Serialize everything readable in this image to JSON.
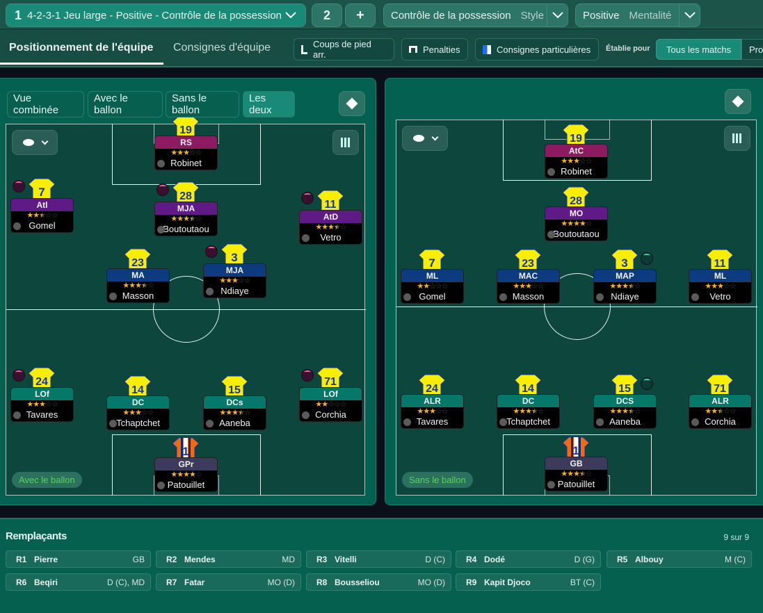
{
  "topbar": {
    "tactic": {
      "slot": "1",
      "label": "4-2-3-1 Jeu large - Positive - Contrôle de la possession"
    },
    "slot2": "2",
    "add": "+",
    "style": {
      "value": "Contrôle de la possession",
      "label": "Style"
    },
    "mentality": {
      "value": "Positive",
      "label": "Mentalité"
    }
  },
  "tabs": {
    "positioning": "Positionnement de l'équipe",
    "instructions": "Consignes d'équipe"
  },
  "toolbar": {
    "set_pieces": "Coups de pied arr.",
    "penalties": "Penalties",
    "player_instructions": "Consignes particulières",
    "established_for": "Établie pour",
    "all_matches": "Tous les matchs",
    "pro": "Pro"
  },
  "views": [
    "Vue combinée",
    "Avec le ballon",
    "Sans le ballon",
    "Les deux"
  ],
  "pitches": [
    {
      "phase": "Avec le ballon",
      "players": [
        {
          "num": "19",
          "role": "RS",
          "rating": 3,
          "name": "Robinet",
          "color": "#8c1b62",
          "icon": null
        },
        {
          "num": "7",
          "role": "Atl",
          "rating": 2.5,
          "name": "Gomel",
          "color": "#5f1a86",
          "icon": "pink"
        },
        {
          "num": "28",
          "role": "MJA",
          "rating": 3.5,
          "name": "Boutoutaou",
          "color": "#5f1a86",
          "icon": "pink"
        },
        {
          "num": "11",
          "role": "AtD",
          "rating": 3.5,
          "name": "Vetro",
          "color": "#5f1a86",
          "icon": "pink"
        },
        {
          "num": "23",
          "role": "MA",
          "rating": 3.5,
          "name": "Masson",
          "color": "#0d3b80",
          "icon": null
        },
        {
          "num": "3",
          "role": "MJA",
          "rating": 3,
          "name": "Ndiaye",
          "color": "#0d3b80",
          "icon": "pink"
        },
        {
          "num": "24",
          "role": "LOf",
          "rating": 3,
          "name": "Tavares",
          "color": "#06786a",
          "icon": "pink"
        },
        {
          "num": "14",
          "role": "DC",
          "rating": 3,
          "name": "Tchaptchet",
          "color": "#06786a",
          "icon": null
        },
        {
          "num": "15",
          "role": "DCs",
          "rating": 3.5,
          "name": "Aaneba",
          "color": "#06786a",
          "icon": null
        },
        {
          "num": "71",
          "role": "LOf",
          "rating": 2,
          "name": "Corchia",
          "color": "#06786a",
          "icon": "pink"
        },
        {
          "num": "1",
          "role": "GPr",
          "rating": 4,
          "name": "Patouillet",
          "color": "#3d3b5c",
          "icon": null,
          "gk": true
        }
      ]
    },
    {
      "phase": "Sans le ballon",
      "players": [
        {
          "num": "19",
          "role": "AtC",
          "rating": 3,
          "name": "Robinet",
          "color": "#8c1b62",
          "icon": null
        },
        {
          "num": "28",
          "role": "MO",
          "rating": 4,
          "name": "Boutoutaou",
          "color": "#5f1a86",
          "icon": null
        },
        {
          "num": "7",
          "role": "ML",
          "rating": 2,
          "name": "Gomel",
          "color": "#0d3b80",
          "icon": null
        },
        {
          "num": "23",
          "role": "MAC",
          "rating": 3,
          "name": "Masson",
          "color": "#0d3b80",
          "icon": null
        },
        {
          "num": "3",
          "role": "MAP",
          "rating": 3.5,
          "name": "Ndiaye",
          "color": "#0d3b80",
          "icon": "teal"
        },
        {
          "num": "11",
          "role": "ML",
          "rating": 3,
          "name": "Vetro",
          "color": "#0d3b80",
          "icon": null
        },
        {
          "num": "24",
          "role": "ALR",
          "rating": 3,
          "name": "Tavares",
          "color": "#06786a",
          "icon": null
        },
        {
          "num": "14",
          "role": "DC",
          "rating": 3.5,
          "name": "Tchaptchet",
          "color": "#06786a",
          "icon": null
        },
        {
          "num": "15",
          "role": "DCS",
          "rating": 3.5,
          "name": "Aaneba",
          "color": "#06786a",
          "icon": "teal"
        },
        {
          "num": "71",
          "role": "ALR",
          "rating": 2.5,
          "name": "Corchia",
          "color": "#06786a",
          "icon": null
        },
        {
          "num": "1",
          "role": "GB",
          "rating": 3.5,
          "name": "Patouillet",
          "color": "#3d3b5c",
          "icon": null,
          "gk": true
        }
      ]
    }
  ],
  "bench": {
    "title": "Remplaçants",
    "count": "9 sur 9",
    "players": [
      {
        "slot": "R1",
        "name": "Pierre",
        "pos": "GB"
      },
      {
        "slot": "R2",
        "name": "Mendes",
        "pos": "MD"
      },
      {
        "slot": "R3",
        "name": "Vitelli",
        "pos": "D (C)"
      },
      {
        "slot": "R4",
        "name": "Dodé",
        "pos": "D (G)"
      },
      {
        "slot": "R5",
        "name": "Albouy",
        "pos": "M (C)"
      },
      {
        "slot": "R6",
        "name": "Beqiri",
        "pos": "D (C), MD"
      },
      {
        "slot": "R7",
        "name": "Fatar",
        "pos": "MO (D)"
      },
      {
        "slot": "R8",
        "name": "Bousseliou",
        "pos": "MO (D)"
      },
      {
        "slot": "R9",
        "name": "Kapit Djoco",
        "pos": "BT (C)"
      }
    ]
  },
  "colors": {
    "accent": "#1a8a78",
    "shirt": "#f7ee00",
    "shirt_number": "#1733a8",
    "gk_shirt": "#f06a10",
    "star": "#f5b12d",
    "phase_text": "#58d05a"
  }
}
